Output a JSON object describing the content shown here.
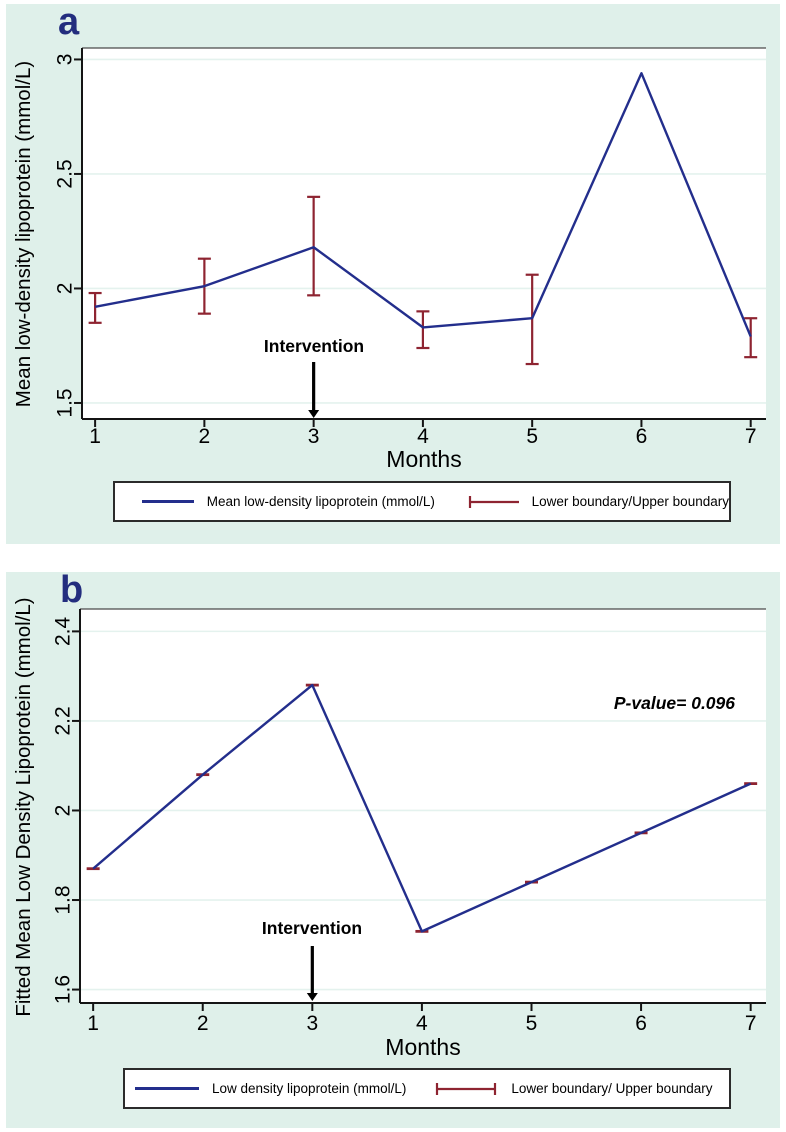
{
  "colors": {
    "navy_line": "#232e8c",
    "dark_red": "#8e2431",
    "mint_background": "#dff0ea",
    "gridline": "#e4f2ee",
    "axis": "#141414",
    "panel_label": "#232d7e"
  },
  "chart_data": [
    {
      "panel_label": "a",
      "type": "line",
      "x": [
        1,
        2,
        3,
        4,
        5,
        6,
        7
      ],
      "series": [
        {
          "name": "Mean low-density lipoprotein (mmol/L)",
          "color": "#232e8c",
          "values": [
            1.92,
            2.01,
            2.18,
            1.83,
            1.87,
            2.94,
            1.79
          ]
        }
      ],
      "error_bars": {
        "name": "Lower boundary/Upper boundary",
        "color": "#8e2431",
        "lower": [
          1.85,
          1.89,
          1.97,
          1.74,
          1.67,
          null,
          1.7
        ],
        "upper": [
          1.98,
          2.13,
          2.4,
          1.9,
          2.06,
          null,
          1.87
        ]
      },
      "xlabel": "Months",
      "ylabel": "Mean low-density lipoprotein (mmol/L)",
      "xticks": [
        "1",
        "2",
        "3",
        "4",
        "5",
        "6",
        "7"
      ],
      "yticks": [
        {
          "value": 3,
          "label": "3"
        },
        {
          "value": 2.5,
          "label": "2.5"
        },
        {
          "value": 2,
          "label": "2"
        },
        {
          "value": 1.5,
          "label": "1.5"
        }
      ],
      "xlim": [
        0.88,
        7.14
      ],
      "ylim": [
        1.43,
        3.05
      ],
      "grid": "horizontal",
      "legend_position": "bottom",
      "annotation": {
        "text": "Intervention",
        "x": 3
      }
    },
    {
      "panel_label": "b",
      "type": "line",
      "x": [
        1,
        2,
        3,
        4,
        5,
        6,
        7
      ],
      "series": [
        {
          "name": "Low density lipoprotein (mmol/L)",
          "color": "#232e8c",
          "values": [
            1.87,
            2.08,
            2.28,
            1.73,
            1.84,
            1.95,
            2.06
          ]
        }
      ],
      "error_bars": {
        "name": "Lower boundary/ Upper boundary",
        "color": "#8e2431",
        "lower": [
          1.87,
          2.08,
          2.28,
          1.73,
          1.84,
          1.95,
          2.06
        ],
        "upper": [
          1.87,
          2.08,
          2.28,
          1.73,
          1.84,
          1.95,
          2.06
        ]
      },
      "xlabel": "Months",
      "ylabel": "Fitted Mean Low Density Lipoprotein (mmol/L)",
      "xticks": [
        "1",
        "2",
        "3",
        "4",
        "5",
        "6",
        "7"
      ],
      "yticks": [
        {
          "value": 2.4,
          "label": "2.4"
        },
        {
          "value": 2.2,
          "label": "2.2"
        },
        {
          "value": 2,
          "label": "2"
        },
        {
          "value": 1.8,
          "label": "1.8"
        },
        {
          "value": 1.6,
          "label": "1.6"
        }
      ],
      "xlim": [
        0.88,
        7.14
      ],
      "ylim": [
        1.57,
        2.45
      ],
      "grid": "horizontal",
      "legend_position": "bottom",
      "annotation": {
        "text": "Intervention",
        "x": 3
      },
      "p_value": "P-value= 0.096"
    }
  ]
}
